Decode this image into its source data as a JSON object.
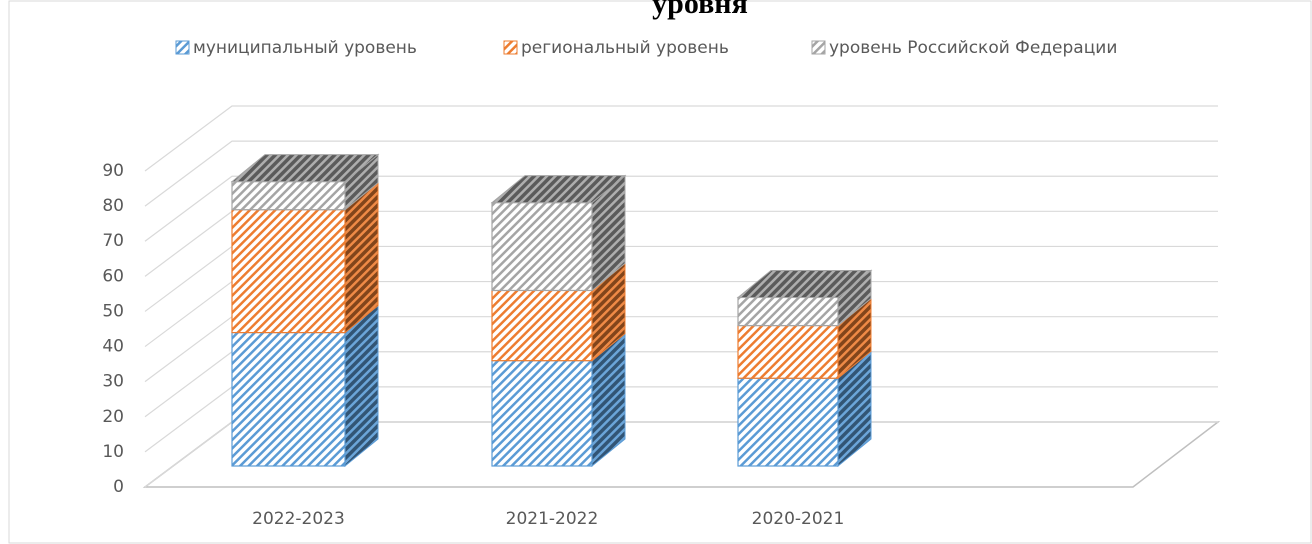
{
  "chart_data": {
    "type": "bar3d_stacked",
    "title": "уровня",
    "categories": [
      "2022-2023",
      "2021-2022",
      "2020-2021"
    ],
    "series": [
      {
        "name": "муниципальный уровень",
        "color": "#5b9bd5",
        "values": [
          38,
          30,
          25
        ]
      },
      {
        "name": "региональный уровень",
        "color": "#ed7d31",
        "values": [
          35,
          20,
          15
        ]
      },
      {
        "name": "уровень Российской Федерации",
        "color": "#a5a5a5",
        "values": [
          8,
          25,
          8
        ]
      }
    ],
    "ylim": [
      0,
      90
    ],
    "yticks": [
      0,
      10,
      20,
      30,
      40,
      50,
      60,
      70,
      80,
      90
    ],
    "grid": true,
    "legend": "top"
  }
}
